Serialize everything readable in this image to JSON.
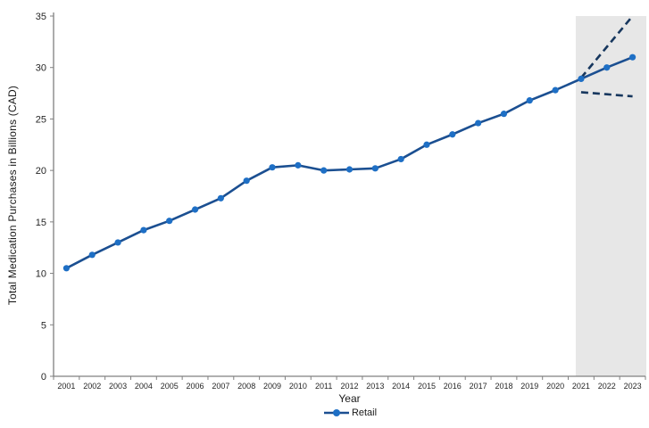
{
  "page": {
    "background": "#ffffff"
  },
  "chart_data": {
    "type": "line",
    "title": "",
    "xlabel": "Year",
    "ylabel": "Total Medication Purchases in Billions (CAD)",
    "categories": [
      "2001",
      "2002",
      "2003",
      "2004",
      "2005",
      "2006",
      "2007",
      "2008",
      "2009",
      "2010",
      "2011",
      "2012",
      "2013",
      "2014",
      "2015",
      "2016",
      "2017",
      "2018",
      "2019",
      "2020",
      "2021",
      "2022",
      "2023"
    ],
    "ylim": [
      0,
      35
    ],
    "ytick_interval": 5,
    "yticks": [
      "0",
      "5",
      "10",
      "15",
      "20",
      "25",
      "30",
      "35"
    ],
    "grid": false,
    "legend_position": "bottom",
    "series": [
      {
        "name": "Retail",
        "type": "line-markers",
        "values": [
          10.5,
          11.8,
          13.0,
          14.2,
          15.1,
          16.2,
          17.3,
          19.0,
          20.3,
          20.5,
          20.0,
          20.1,
          20.2,
          21.1,
          22.5,
          23.5,
          24.6,
          25.5,
          26.8,
          27.8,
          28.9,
          30.0,
          31.0
        ]
      },
      {
        "name": "projection-upper-bound",
        "type": "dashed-line",
        "x": [
          "2021",
          "2022",
          "2023"
        ],
        "values": [
          29.0,
          32.0,
          35.0
        ]
      },
      {
        "name": "projection-lower-bound",
        "type": "dashed-line",
        "x": [
          "2021",
          "2022",
          "2023"
        ],
        "values": [
          27.6,
          27.4,
          27.2
        ]
      }
    ],
    "projection_region": {
      "from": "2021",
      "to": "2023"
    },
    "legend": {
      "items": [
        {
          "label": "Retail"
        }
      ]
    },
    "colors": {
      "series_line": "#1b4f91",
      "marker_fill": "#1e6fc5",
      "projection_dash": "#17375e",
      "projection_band": "#e7e7e7",
      "axis": "#808080",
      "tick_label": "#262626"
    }
  }
}
